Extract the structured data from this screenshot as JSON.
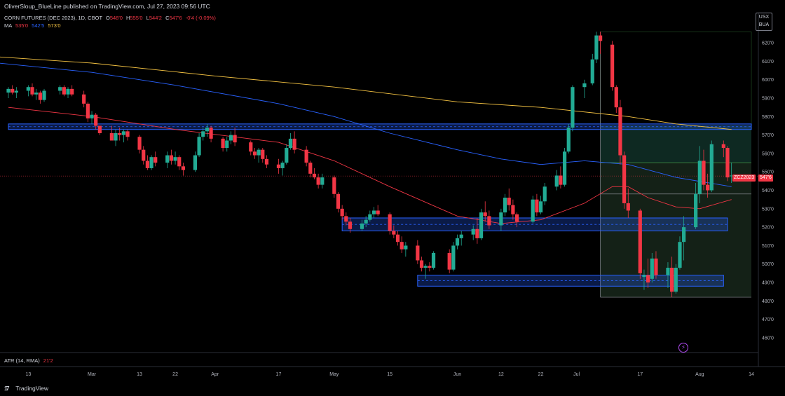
{
  "header": {
    "published": "OliverSloup_BlueLine published on TradingView.com, Jul 27, 2023 09:56 UTC",
    "symbol": "CORN FUTURES (DEC 2023), 1D, CBOT",
    "o_label": "O",
    "o_value": "548'0",
    "h_label": "H",
    "h_value": "555'0",
    "l_label": "L",
    "l_value": "544'2",
    "c_label": "C",
    "c_value": "547'6",
    "change": "-0'4 (-0.09%)"
  },
  "ma_legend": {
    "label": "MA",
    "v1": "535'0",
    "v2": "542'5",
    "v3": "573'0"
  },
  "atr_legend": {
    "label": "ATR (14, RMA)",
    "value": "21'2"
  },
  "currency": {
    "line1": "USX",
    "line2": "BUA"
  },
  "price_tag": {
    "symbol": "ZCZ2023",
    "value": "547'6"
  },
  "branding": {
    "mark": "17",
    "name": "TradingView"
  },
  "colors": {
    "up": "#22ab94",
    "down": "#f23645",
    "ma_red": "#f23645",
    "ma_blue": "#2962ff",
    "ma_gold": "#f5c342",
    "zone": "#2962ff"
  },
  "chart_data": {
    "type": "candlestick",
    "y_tick_labels": [
      "620'0",
      "610'0",
      "600'0",
      "590'0",
      "580'0",
      "570'0",
      "560'0",
      "550'0",
      "540'0",
      "530'0",
      "520'0",
      "510'0",
      "500'0",
      "490'0",
      "480'0",
      "470'0",
      "460'0"
    ],
    "y_ticks": [
      620,
      610,
      600,
      590,
      580,
      570,
      560,
      550,
      540,
      530,
      520,
      510,
      500,
      490,
      480,
      470,
      460
    ],
    "ylim": [
      452,
      636
    ],
    "x_tick_labels": [
      "13",
      "Mar",
      "13",
      "22",
      "Apr",
      "17",
      "May",
      "15",
      "Jun",
      "12",
      "22",
      "Jul",
      "17",
      "Aug",
      "14"
    ],
    "x_ticks": [
      "2023-02-13",
      "2023-03-01",
      "2023-03-13",
      "2023-03-22",
      "2023-04-01",
      "2023-04-17",
      "2023-05-01",
      "2023-05-15",
      "2023-06-01",
      "2023-06-12",
      "2023-06-22",
      "2023-07-01",
      "2023-07-17",
      "2023-08-01",
      "2023-08-14"
    ],
    "candles": [
      {
        "d": "2023-02-08",
        "o": 593,
        "h": 596,
        "l": 590,
        "c": 595
      },
      {
        "d": "2023-02-09",
        "o": 595,
        "h": 597,
        "l": 592,
        "c": 593
      },
      {
        "d": "2023-02-10",
        "o": 593,
        "h": 596,
        "l": 590,
        "c": 594
      },
      {
        "d": "2023-02-13",
        "o": 594,
        "h": 597,
        "l": 591,
        "c": 596
      },
      {
        "d": "2023-02-14",
        "o": 596,
        "h": 598,
        "l": 591,
        "c": 592
      },
      {
        "d": "2023-02-15",
        "o": 592,
        "h": 595,
        "l": 589,
        "c": 593
      },
      {
        "d": "2023-02-16",
        "o": 593,
        "h": 594,
        "l": 587,
        "c": 589
      },
      {
        "d": "2023-02-17",
        "o": 589,
        "h": 595,
        "l": 588,
        "c": 594
      },
      {
        "d": "2023-02-21",
        "o": 594,
        "h": 597,
        "l": 592,
        "c": 596
      },
      {
        "d": "2023-02-22",
        "o": 596,
        "h": 597,
        "l": 591,
        "c": 592
      },
      {
        "d": "2023-02-23",
        "o": 592,
        "h": 596,
        "l": 590,
        "c": 595
      },
      {
        "d": "2023-02-24",
        "o": 595,
        "h": 597,
        "l": 591,
        "c": 592
      },
      {
        "d": "2023-02-27",
        "o": 592,
        "h": 594,
        "l": 585,
        "c": 587
      },
      {
        "d": "2023-02-28",
        "o": 587,
        "h": 588,
        "l": 577,
        "c": 579
      },
      {
        "d": "2023-03-01",
        "o": 579,
        "h": 583,
        "l": 576,
        "c": 581
      },
      {
        "d": "2023-03-02",
        "o": 581,
        "h": 582,
        "l": 573,
        "c": 575
      },
      {
        "d": "2023-03-03",
        "o": 575,
        "h": 575,
        "l": 570,
        "c": 571
      },
      {
        "d": "2023-03-06",
        "o": 571,
        "h": 575,
        "l": 567,
        "c": 567
      },
      {
        "d": "2023-03-07",
        "o": 567,
        "h": 573,
        "l": 564,
        "c": 571
      },
      {
        "d": "2023-03-08",
        "o": 571,
        "h": 574,
        "l": 567,
        "c": 570
      },
      {
        "d": "2023-03-09",
        "o": 570,
        "h": 573,
        "l": 566,
        "c": 572
      },
      {
        "d": "2023-03-10",
        "o": 572,
        "h": 573,
        "l": 567,
        "c": 569
      },
      {
        "d": "2023-03-13",
        "o": 569,
        "h": 570,
        "l": 560,
        "c": 562
      },
      {
        "d": "2023-03-14",
        "o": 562,
        "h": 564,
        "l": 554,
        "c": 556
      },
      {
        "d": "2023-03-15",
        "o": 556,
        "h": 559,
        "l": 551,
        "c": 552
      },
      {
        "d": "2023-03-16",
        "o": 552,
        "h": 559,
        "l": 551,
        "c": 558
      },
      {
        "d": "2023-03-17",
        "o": 558,
        "h": 561,
        "l": 553,
        "c": 555
      },
      {
        "d": "2023-03-20",
        "o": 555,
        "h": 561,
        "l": 552,
        "c": 559
      },
      {
        "d": "2023-03-21",
        "o": 559,
        "h": 562,
        "l": 554,
        "c": 556
      },
      {
        "d": "2023-03-22",
        "o": 556,
        "h": 561,
        "l": 554,
        "c": 558
      },
      {
        "d": "2023-03-23",
        "o": 558,
        "h": 559,
        "l": 551,
        "c": 553
      },
      {
        "d": "2023-03-24",
        "o": 553,
        "h": 555,
        "l": 548,
        "c": 551
      },
      {
        "d": "2023-03-27",
        "o": 551,
        "h": 561,
        "l": 550,
        "c": 559
      },
      {
        "d": "2023-03-28",
        "o": 559,
        "h": 571,
        "l": 558,
        "c": 569
      },
      {
        "d": "2023-03-29",
        "o": 569,
        "h": 574,
        "l": 567,
        "c": 572
      },
      {
        "d": "2023-03-30",
        "o": 572,
        "h": 576,
        "l": 569,
        "c": 574
      },
      {
        "d": "2023-03-31",
        "o": 574,
        "h": 575,
        "l": 566,
        "c": 568
      },
      {
        "d": "2023-04-03",
        "o": 568,
        "h": 569,
        "l": 561,
        "c": 563
      },
      {
        "d": "2023-04-04",
        "o": 563,
        "h": 569,
        "l": 561,
        "c": 567
      },
      {
        "d": "2023-04-05",
        "o": 567,
        "h": 572,
        "l": 565,
        "c": 570
      },
      {
        "d": "2023-04-06",
        "o": 570,
        "h": 574,
        "l": 564,
        "c": 566
      },
      {
        "d": "2023-04-10",
        "o": 566,
        "h": 567,
        "l": 559,
        "c": 561
      },
      {
        "d": "2023-04-11",
        "o": 561,
        "h": 563,
        "l": 557,
        "c": 559
      },
      {
        "d": "2023-04-12",
        "o": 559,
        "h": 563,
        "l": 555,
        "c": 562
      },
      {
        "d": "2023-04-13",
        "o": 562,
        "h": 563,
        "l": 555,
        "c": 557
      },
      {
        "d": "2023-04-14",
        "o": 557,
        "h": 559,
        "l": 552,
        "c": 554
      },
      {
        "d": "2023-04-17",
        "o": 554,
        "h": 557,
        "l": 549,
        "c": 552
      },
      {
        "d": "2023-04-18",
        "o": 552,
        "h": 556,
        "l": 548,
        "c": 555
      },
      {
        "d": "2023-04-19",
        "o": 555,
        "h": 565,
        "l": 554,
        "c": 563
      },
      {
        "d": "2023-04-20",
        "o": 563,
        "h": 571,
        "l": 562,
        "c": 568
      },
      {
        "d": "2023-04-21",
        "o": 568,
        "h": 572,
        "l": 560,
        "c": 562
      },
      {
        "d": "2023-04-24",
        "o": 562,
        "h": 564,
        "l": 553,
        "c": 555
      },
      {
        "d": "2023-04-25",
        "o": 555,
        "h": 556,
        "l": 547,
        "c": 549
      },
      {
        "d": "2023-04-26",
        "o": 549,
        "h": 552,
        "l": 546,
        "c": 547
      },
      {
        "d": "2023-04-27",
        "o": 547,
        "h": 549,
        "l": 541,
        "c": 543
      },
      {
        "d": "2023-04-28",
        "o": 543,
        "h": 549,
        "l": 541,
        "c": 547
      },
      {
        "d": "2023-05-01",
        "o": 547,
        "h": 548,
        "l": 536,
        "c": 538
      },
      {
        "d": "2023-05-02",
        "o": 538,
        "h": 539,
        "l": 528,
        "c": 530
      },
      {
        "d": "2023-05-03",
        "o": 530,
        "h": 532,
        "l": 524,
        "c": 526
      },
      {
        "d": "2023-05-04",
        "o": 526,
        "h": 528,
        "l": 521,
        "c": 523
      },
      {
        "d": "2023-05-05",
        "o": 523,
        "h": 525,
        "l": 517,
        "c": 519
      },
      {
        "d": "2023-05-08",
        "o": 519,
        "h": 524,
        "l": 518,
        "c": 522
      },
      {
        "d": "2023-05-09",
        "o": 522,
        "h": 526,
        "l": 520,
        "c": 524
      },
      {
        "d": "2023-05-10",
        "o": 524,
        "h": 529,
        "l": 523,
        "c": 527
      },
      {
        "d": "2023-05-11",
        "o": 527,
        "h": 531,
        "l": 525,
        "c": 529
      },
      {
        "d": "2023-05-12",
        "o": 529,
        "h": 532,
        "l": 526,
        "c": 527
      },
      {
        "d": "2023-05-15",
        "o": 527,
        "h": 528,
        "l": 516,
        "c": 518
      },
      {
        "d": "2023-05-16",
        "o": 518,
        "h": 521,
        "l": 514,
        "c": 516
      },
      {
        "d": "2023-05-17",
        "o": 516,
        "h": 518,
        "l": 510,
        "c": 512
      },
      {
        "d": "2023-05-18",
        "o": 512,
        "h": 515,
        "l": 506,
        "c": 508
      },
      {
        "d": "2023-05-19",
        "o": 508,
        "h": 512,
        "l": 504,
        "c": 510
      },
      {
        "d": "2023-05-22",
        "o": 510,
        "h": 513,
        "l": 500,
        "c": 502
      },
      {
        "d": "2023-05-23",
        "o": 502,
        "h": 504,
        "l": 496,
        "c": 498
      },
      {
        "d": "2023-05-24",
        "o": 498,
        "h": 500,
        "l": 492,
        "c": 499
      },
      {
        "d": "2023-05-25",
        "o": 499,
        "h": 501,
        "l": 496,
        "c": 498
      },
      {
        "d": "2023-05-26",
        "o": 498,
        "h": 507,
        "l": 497,
        "c": 506
      },
      {
        "d": "2023-05-30",
        "o": 506,
        "h": 508,
        "l": 495,
        "c": 497
      },
      {
        "d": "2023-05-31",
        "o": 497,
        "h": 512,
        "l": 496,
        "c": 510
      },
      {
        "d": "2023-06-01",
        "o": 510,
        "h": 516,
        "l": 508,
        "c": 514
      },
      {
        "d": "2023-06-02",
        "o": 514,
        "h": 518,
        "l": 510,
        "c": 516
      },
      {
        "d": "2023-06-05",
        "o": 516,
        "h": 521,
        "l": 513,
        "c": 519
      },
      {
        "d": "2023-06-06",
        "o": 519,
        "h": 525,
        "l": 511,
        "c": 514
      },
      {
        "d": "2023-06-07",
        "o": 514,
        "h": 530,
        "l": 513,
        "c": 528
      },
      {
        "d": "2023-06-08",
        "o": 528,
        "h": 534,
        "l": 523,
        "c": 526
      },
      {
        "d": "2023-06-09",
        "o": 526,
        "h": 529,
        "l": 519,
        "c": 521
      },
      {
        "d": "2023-06-12",
        "o": 521,
        "h": 530,
        "l": 518,
        "c": 528
      },
      {
        "d": "2023-06-13",
        "o": 528,
        "h": 538,
        "l": 526,
        "c": 536
      },
      {
        "d": "2023-06-14",
        "o": 536,
        "h": 541,
        "l": 529,
        "c": 532
      },
      {
        "d": "2023-06-15",
        "o": 532,
        "h": 535,
        "l": 524,
        "c": 527
      },
      {
        "d": "2023-06-16",
        "o": 527,
        "h": 528,
        "l": 520,
        "c": 523
      },
      {
        "d": "2023-06-20",
        "o": 523,
        "h": 537,
        "l": 522,
        "c": 535
      },
      {
        "d": "2023-06-21",
        "o": 535,
        "h": 538,
        "l": 526,
        "c": 528
      },
      {
        "d": "2023-06-22",
        "o": 528,
        "h": 537,
        "l": 527,
        "c": 534
      },
      {
        "d": "2023-06-23",
        "o": 534,
        "h": 544,
        "l": 532,
        "c": 542
      },
      {
        "d": "2023-06-26",
        "o": 542,
        "h": 551,
        "l": 540,
        "c": 548
      },
      {
        "d": "2023-06-27",
        "o": 548,
        "h": 553,
        "l": 541,
        "c": 543
      },
      {
        "d": "2023-06-28",
        "o": 543,
        "h": 563,
        "l": 542,
        "c": 561
      },
      {
        "d": "2023-06-29",
        "o": 561,
        "h": 576,
        "l": 560,
        "c": 574
      },
      {
        "d": "2023-06-30",
        "o": 574,
        "h": 597,
        "l": 572,
        "c": 596
      },
      {
        "d": "2023-07-03",
        "o": 596,
        "h": 600,
        "l": 590,
        "c": 598
      },
      {
        "d": "2023-07-05",
        "o": 598,
        "h": 614,
        "l": 597,
        "c": 611
      },
      {
        "d": "2023-07-06",
        "o": 611,
        "h": 626,
        "l": 609,
        "c": 624
      },
      {
        "d": "2023-07-07",
        "o": 624,
        "h": 626,
        "l": 614,
        "c": 621
      },
      {
        "d": "2023-07-10",
        "o": 619,
        "h": 621,
        "l": 594,
        "c": 596
      },
      {
        "d": "2023-07-11",
        "o": 596,
        "h": 597,
        "l": 582,
        "c": 585
      },
      {
        "d": "2023-07-12",
        "o": 585,
        "h": 589,
        "l": 554,
        "c": 559
      },
      {
        "d": "2023-07-13",
        "o": 559,
        "h": 561,
        "l": 530,
        "c": 533
      },
      {
        "d": "2023-07-14",
        "o": 533,
        "h": 541,
        "l": 525,
        "c": 529
      },
      {
        "d": "2023-07-17",
        "o": 529,
        "h": 530,
        "l": 492,
        "c": 495
      },
      {
        "d": "2023-07-18",
        "o": 493,
        "h": 497,
        "l": 486,
        "c": 494
      },
      {
        "d": "2023-07-19",
        "o": 494,
        "h": 503,
        "l": 487,
        "c": 490
      },
      {
        "d": "2023-07-20",
        "o": 492,
        "h": 506,
        "l": 490,
        "c": 503
      },
      {
        "d": "2023-07-21",
        "o": 503,
        "h": 507,
        "l": 492,
        "c": 494
      },
      {
        "d": "2023-07-24",
        "o": 494,
        "h": 501,
        "l": 487,
        "c": 498
      },
      {
        "d": "2023-07-25",
        "o": 498,
        "h": 504,
        "l": 482,
        "c": 485
      },
      {
        "d": "2023-07-26",
        "o": 485,
        "h": 500,
        "l": 484,
        "c": 498
      },
      {
        "d": "2023-07-27",
        "o": 498,
        "h": 515,
        "l": 497,
        "c": 512
      },
      {
        "d": "2023-07-28",
        "o": 512,
        "h": 526,
        "l": 502,
        "c": 520
      },
      {
        "d": "2023-07-31",
        "o": 520,
        "h": 544,
        "l": 519,
        "c": 538
      },
      {
        "d": "2023-08-01",
        "o": 538,
        "h": 564,
        "l": 533,
        "c": 556
      },
      {
        "d": "2023-08-02",
        "o": 556,
        "h": 562,
        "l": 540,
        "c": 543
      },
      {
        "d": "2023-08-03",
        "o": 543,
        "h": 549,
        "l": 536,
        "c": 540
      },
      {
        "d": "2023-08-04",
        "o": 540,
        "h": 567,
        "l": 539,
        "c": 565
      },
      {
        "d": "2023-08-07",
        "o": 565,
        "h": 567,
        "l": 558,
        "c": 563
      },
      {
        "d": "2023-08-08",
        "o": 563,
        "h": 564,
        "l": 545,
        "c": 547
      },
      {
        "d": "2023-08-09",
        "o": 548,
        "h": 555,
        "l": 544,
        "c": 548
      }
    ],
    "ma_red": [
      {
        "d": "2023-02-08",
        "v": 585
      },
      {
        "d": "2023-03-01",
        "v": 580
      },
      {
        "d": "2023-03-22",
        "v": 573
      },
      {
        "d": "2023-04-17",
        "v": 566
      },
      {
        "d": "2023-05-01",
        "v": 556
      },
      {
        "d": "2023-05-15",
        "v": 542
      },
      {
        "d": "2023-06-01",
        "v": 526
      },
      {
        "d": "2023-06-12",
        "v": 522
      },
      {
        "d": "2023-06-22",
        "v": 524
      },
      {
        "d": "2023-07-03",
        "v": 533
      },
      {
        "d": "2023-07-10",
        "v": 542
      },
      {
        "d": "2023-07-14",
        "v": 542
      },
      {
        "d": "2023-07-19",
        "v": 536
      },
      {
        "d": "2023-07-26",
        "v": 531
      },
      {
        "d": "2023-08-01",
        "v": 530
      },
      {
        "d": "2023-08-09",
        "v": 535
      }
    ],
    "ma_blue": [
      {
        "d": "2023-02-01",
        "v": 610
      },
      {
        "d": "2023-03-01",
        "v": 604
      },
      {
        "d": "2023-03-22",
        "v": 597
      },
      {
        "d": "2023-04-17",
        "v": 587
      },
      {
        "d": "2023-05-01",
        "v": 580
      },
      {
        "d": "2023-05-15",
        "v": 571
      },
      {
        "d": "2023-06-01",
        "v": 562
      },
      {
        "d": "2023-06-12",
        "v": 557
      },
      {
        "d": "2023-06-22",
        "v": 554
      },
      {
        "d": "2023-07-03",
        "v": 556
      },
      {
        "d": "2023-07-14",
        "v": 554
      },
      {
        "d": "2023-07-26",
        "v": 547
      },
      {
        "d": "2023-08-09",
        "v": 542
      }
    ],
    "ma_gold": [
      {
        "d": "2023-02-01",
        "v": 613
      },
      {
        "d": "2023-03-01",
        "v": 609
      },
      {
        "d": "2023-04-01",
        "v": 602
      },
      {
        "d": "2023-05-01",
        "v": 596
      },
      {
        "d": "2023-06-01",
        "v": 588
      },
      {
        "d": "2023-06-22",
        "v": 585
      },
      {
        "d": "2023-07-14",
        "v": 580
      },
      {
        "d": "2023-07-26",
        "v": 576
      },
      {
        "d": "2023-08-09",
        "v": 573
      }
    ],
    "zones": [
      {
        "d1": "2023-02-08",
        "d2": "2023-08-14",
        "top": 576,
        "bottom": 573,
        "mid": 574.5
      },
      {
        "d1": "2023-05-03",
        "d2": "2023-08-08",
        "top": 525,
        "bottom": 518,
        "mid": 521.5
      },
      {
        "d1": "2023-05-22",
        "d2": "2023-08-07",
        "top": 494,
        "bottom": 488,
        "mid": 491
      }
    ],
    "last_price": 547.75,
    "projection": {
      "d1": "2023-07-07",
      "d2": "2023-08-14",
      "top": 626,
      "mid": 555,
      "low_line": 538,
      "bottom": 482,
      "label_line_top": 575
    }
  }
}
